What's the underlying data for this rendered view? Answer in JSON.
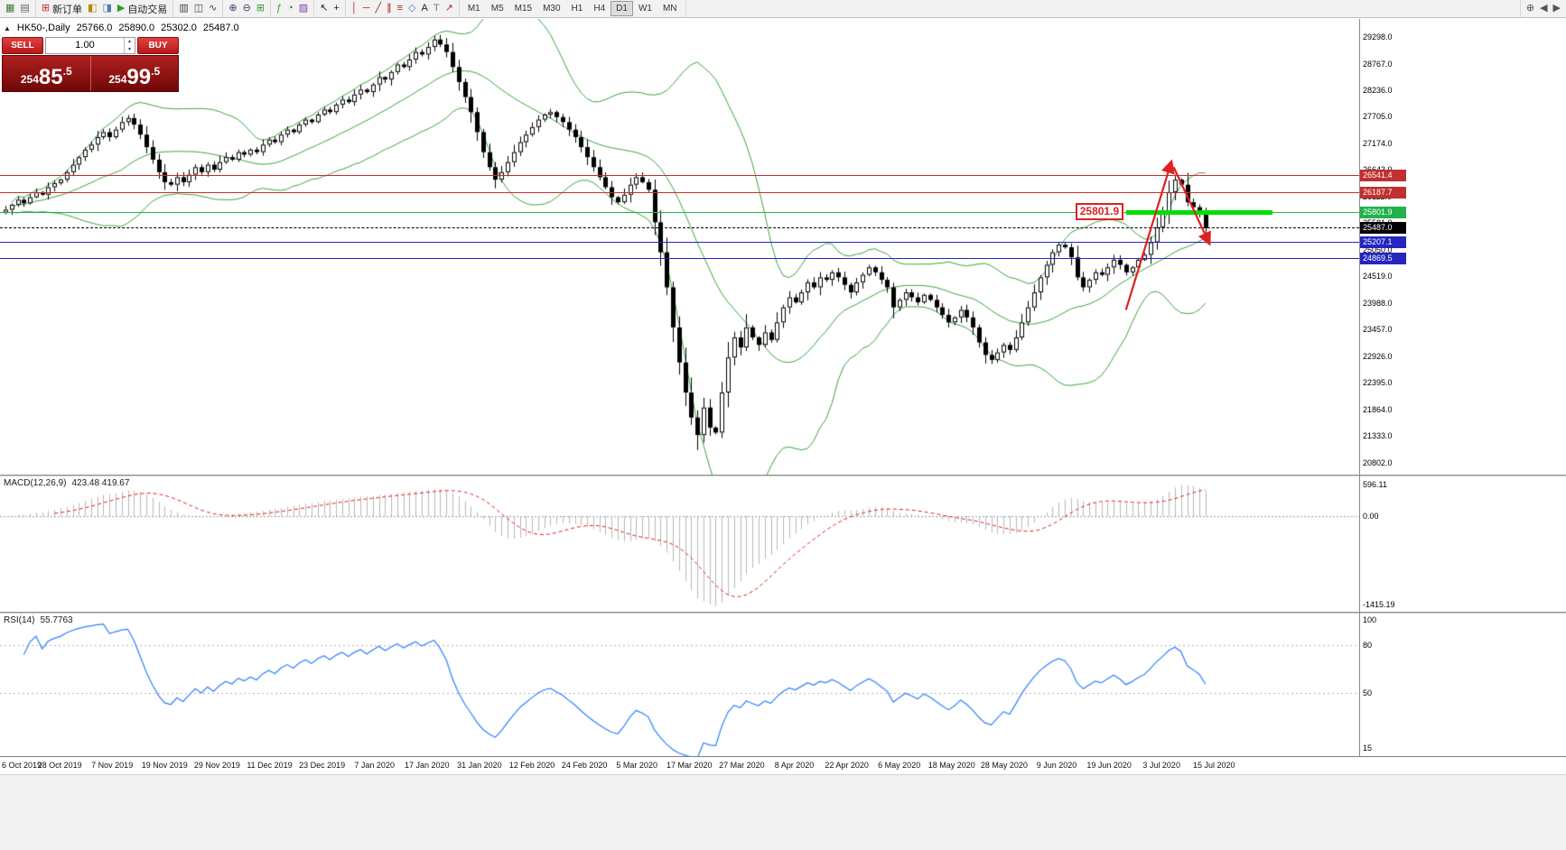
{
  "toolbar": {
    "groups": [
      {
        "name": "window-group",
        "items": [
          {
            "name": "new-chart-icon",
            "glyph": "▦",
            "color": "#3a7d3a"
          },
          {
            "name": "profiles-icon",
            "glyph": "▤",
            "color": "#666666"
          }
        ]
      },
      {
        "name": "order-group",
        "items": [
          {
            "name": "new-order-button",
            "glyph": "⊞",
            "color": "#c03030",
            "label": "新订单"
          },
          {
            "name": "market-watch-icon",
            "glyph": "◧",
            "color": "#b8860b"
          },
          {
            "name": "data-window-icon",
            "glyph": "◨",
            "color": "#4682b4"
          },
          {
            "name": "autotrading-button",
            "glyph": "▶",
            "color": "#2e9e2e",
            "label": "自动交易"
          }
        ]
      },
      {
        "name": "chart-type-group",
        "items": [
          {
            "name": "bar-chart-icon",
            "glyph": "▥",
            "color": "#444444"
          },
          {
            "name": "candlestick-chart-icon",
            "glyph": "◫",
            "color": "#444444"
          },
          {
            "name": "line-chart-icon",
            "glyph": "∿",
            "color": "#444444"
          }
        ]
      },
      {
        "name": "zoom-group",
        "items": [
          {
            "name": "zoom-in-icon",
            "glyph": "⊕",
            "color": "#334466"
          },
          {
            "name": "zoom-out-icon",
            "glyph": "⊖",
            "color": "#334466"
          },
          {
            "name": "tile-windows-icon",
            "glyph": "⊞",
            "color": "#2e9e2e"
          }
        ]
      },
      {
        "name": "tools-group",
        "items": [
          {
            "name": "indicators-icon",
            "glyph": "ƒ",
            "color": "#2e9e2e"
          },
          {
            "name": "periods-icon",
            "glyph": "◔",
            "color": "#555555"
          },
          {
            "name": "templates-icon",
            "glyph": "▨",
            "color": "#7b3fa0"
          }
        ]
      },
      {
        "name": "cursor-group",
        "items": [
          {
            "name": "cursor-icon",
            "glyph": "↖",
            "color": "#222222"
          },
          {
            "name": "crosshair-icon",
            "glyph": "+",
            "color": "#222222"
          }
        ]
      },
      {
        "name": "draw-group",
        "items": [
          {
            "name": "vertical-line-icon",
            "glyph": "│",
            "color": "#aa2222"
          },
          {
            "name": "horizontal-line-icon",
            "glyph": "─",
            "color": "#aa2222"
          },
          {
            "name": "trendline-icon",
            "glyph": "╱",
            "color": "#aa2222"
          },
          {
            "name": "channel-icon",
            "glyph": "∥",
            "color": "#aa2222"
          },
          {
            "name": "fibonacci-icon",
            "glyph": "≡",
            "color": "#aa2222"
          },
          {
            "name": "shapes-icon",
            "glyph": "◇",
            "color": "#4682b4"
          },
          {
            "name": "text-icon",
            "glyph": "A",
            "color": "#222222"
          },
          {
            "name": "label-icon",
            "glyph": "T",
            "color": "#777777"
          },
          {
            "name": "arrows-icon",
            "glyph": "↗",
            "color": "#c03030"
          }
        ]
      }
    ],
    "timeframes": [
      "M1",
      "M5",
      "M15",
      "M30",
      "H1",
      "H4",
      "D1",
      "W1",
      "MN"
    ],
    "active_timeframe": "D1",
    "right_items": [
      {
        "name": "magnifier-plus-icon",
        "glyph": "⊕",
        "color": "#555555"
      },
      {
        "name": "scroll-left-icon",
        "glyph": "◀",
        "color": "#555555"
      },
      {
        "name": "scroll-right-icon",
        "glyph": "▶",
        "color": "#555555"
      }
    ]
  },
  "chart": {
    "title": {
      "symbol_period": "HK50-,Daily",
      "open": "25766.0",
      "high": "25890.0",
      "low": "25302.0",
      "close": "25487.0"
    },
    "icons": {
      "collapse_triangle": "▲",
      "spin_up": "▴",
      "spin_down": "▾"
    },
    "one_click": {
      "sell_label": "SELL",
      "buy_label": "BUY",
      "volume": "1.00",
      "sell_price": {
        "prefix": "254",
        "big": "85",
        "suffix": ".5"
      },
      "buy_price": {
        "prefix": "254",
        "big": "99",
        "suffix": ".5"
      }
    },
    "y_axis_labels": [
      "29298.0",
      "28767.0",
      "28236.0",
      "27705.0",
      "27174.0",
      "26643.0",
      "26112.0",
      "25581.0",
      "25050.0",
      "24519.0",
      "23988.0",
      "23457.0",
      "22926.0",
      "22395.0",
      "21864.0",
      "21333.0",
      "20802.0"
    ],
    "price_range": {
      "top": 29660,
      "bottom": 20560
    },
    "lines": [
      {
        "price": 26541.4,
        "label": "26541.4",
        "color": "#c03030",
        "style": "solid",
        "width": 1
      },
      {
        "price": 26187.7,
        "label": "26187.7",
        "color": "#c03030",
        "style": "solid",
        "width": 1
      },
      {
        "price": 25801.9,
        "label": "25801.9",
        "color": "#22b14c",
        "style": "solid",
        "width": 1
      },
      {
        "price": 25487.0,
        "label": "25487.0",
        "color": "#000000",
        "style": "dashed",
        "width": 1
      },
      {
        "price": 25207.1,
        "label": "25207.1",
        "color": "#2525c0",
        "style": "solid",
        "width": 1
      },
      {
        "price": 24869.5,
        "label": "24869.5",
        "color": "#2525c0",
        "style": "solid",
        "width": 1
      }
    ],
    "support_segment": {
      "price": 25801.9,
      "from_i": 183,
      "to_i": 207,
      "thickness": 5,
      "color": "#00dd00"
    },
    "price_flag": {
      "text": "25801.9",
      "color": "#dd2222"
    },
    "arrows": [
      {
        "from_i": 183,
        "from_price": 23850,
        "to_i": 190.4,
        "to_price": 26800
      },
      {
        "from_i": 190.8,
        "from_price": 26700,
        "to_i": 196.6,
        "to_price": 25180
      }
    ],
    "arrow_color": "#e02020",
    "band_color": "#3aa33a",
    "candle_up_fill": "#ffffff",
    "candle_down_fill": "#000000"
  },
  "macd": {
    "name": "MACD(12,26,9)",
    "values": "423.48 419.67",
    "fast": 12,
    "slow": 26,
    "signal": 9,
    "axis_labels": [
      "596.11",
      "0.00",
      "-1415.19"
    ],
    "hist_color": "#b8b8b8",
    "signal_color": "#e02020"
  },
  "rsi": {
    "name": "RSI(14)",
    "value": "55.7763",
    "period": 14,
    "axis_labels": [
      "100",
      "80",
      "50",
      "15"
    ],
    "levels": [
      80,
      50
    ],
    "line_color": "#2a7fff"
  },
  "x_axis": {
    "labels": [
      "6 Oct 2019",
      "28 Oct 2019",
      "7 Nov 2019",
      "19 Nov 2019",
      "29 Nov 2019",
      "11 Dec 2019",
      "23 Dec 2019",
      "7 Jan 2020",
      "17 Jan 2020",
      "31 Jan 2020",
      "12 Feb 2020",
      "24 Feb 2020",
      "5 Mar 2020",
      "17 Mar 2020",
      "27 Mar 2020",
      "8 Apr 2020",
      "22 Apr 2020",
      "6 May 2020",
      "18 May 2020",
      "28 May 2020",
      "9 Jun 2020",
      "19 Jun 2020",
      "3 Jul 2020",
      "15 Jul 2020"
    ]
  },
  "chart_data": {
    "type": "candlestick",
    "symbol": "HK50",
    "timeframe": "Daily",
    "title": "HK50-,Daily 25766.0 25890.0 25302.0 25487.0",
    "y_range": [
      20802,
      29298
    ],
    "last_ohlc": [
      25766.0,
      25890.0,
      25302.0,
      25487.0
    ],
    "overlays": [
      "Bollinger Bands (green)",
      "MACD(12,26,9) 423.48 419.67",
      "RSI(14) 55.7763"
    ],
    "horizontal_levels": [
      26541.4,
      26187.7,
      25801.9,
      25487.0,
      25207.1,
      24869.5
    ],
    "closes": [
      25850,
      25950,
      26050,
      25980,
      26100,
      26200,
      26150,
      26300,
      26380,
      26450,
      26600,
      26750,
      26900,
      27050,
      27150,
      27300,
      27400,
      27300,
      27450,
      27600,
      27680,
      27550,
      27350,
      27100,
      26850,
      26600,
      26400,
      26350,
      26500,
      26400,
      26550,
      26700,
      26600,
      26750,
      26650,
      26800,
      26900,
      26850,
      27000,
      26950,
      27050,
      27000,
      27150,
      27250,
      27200,
      27350,
      27450,
      27400,
      27550,
      27650,
      27600,
      27750,
      27850,
      27800,
      27950,
      28050,
      28000,
      28150,
      28250,
      28200,
      28350,
      28500,
      28450,
      28600,
      28750,
      28700,
      28850,
      29000,
      28950,
      29100,
      29250,
      29150,
      29000,
      28700,
      28400,
      28100,
      27800,
      27400,
      27000,
      26700,
      26450,
      26600,
      26800,
      27000,
      27200,
      27350,
      27500,
      27650,
      27750,
      27800,
      27700,
      27600,
      27450,
      27300,
      27100,
      26900,
      26700,
      26500,
      26300,
      26100,
      26000,
      26150,
      26350,
      26500,
      26400,
      26250,
      25600,
      25000,
      24300,
      23500,
      22800,
      22200,
      21700,
      21350,
      21900,
      21500,
      21400,
      22200,
      22900,
      23300,
      23100,
      23500,
      23300,
      23150,
      23400,
      23250,
      23600,
      23900,
      24100,
      24000,
      24200,
      24400,
      24300,
      24500,
      24450,
      24600,
      24500,
      24350,
      24200,
      24400,
      24550,
      24700,
      24600,
      24450,
      24300,
      23900,
      24050,
      24200,
      24100,
      24000,
      24150,
      24050,
      23900,
      23750,
      23600,
      23700,
      23850,
      23700,
      23500,
      23200,
      22950,
      22850,
      23000,
      23150,
      23050,
      23300,
      23600,
      23900,
      24200,
      24500,
      24750,
      25000,
      25150,
      25100,
      24900,
      24500,
      24300,
      24450,
      24600,
      24550,
      24700,
      24850,
      24750,
      24600,
      24700,
      24850,
      24950,
      25200,
      25500,
      25800,
      26200,
      26450,
      26350,
      26000,
      25900,
      25770,
      25487
    ]
  }
}
